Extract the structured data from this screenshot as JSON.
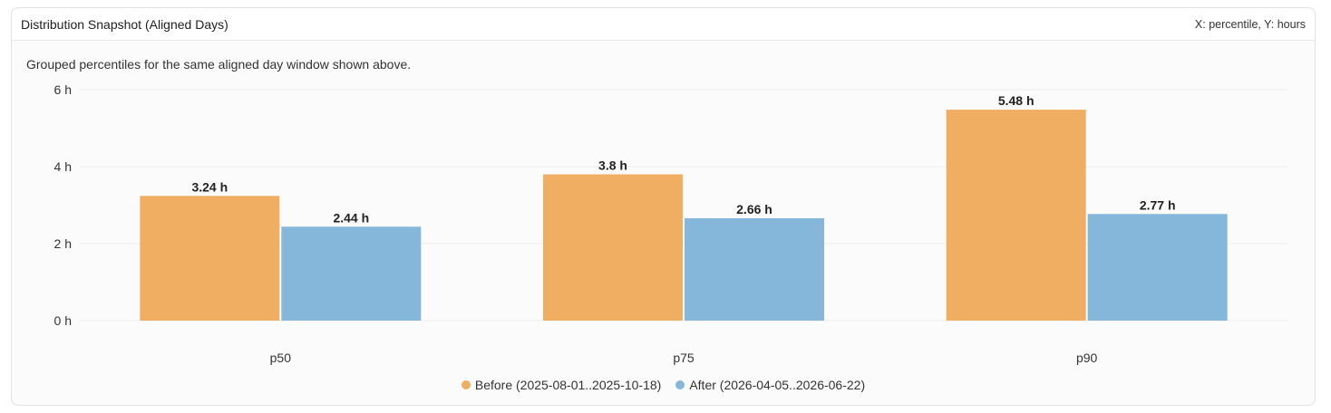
{
  "panel": {
    "title": "Distribution Snapshot (Aligned Days)",
    "axes_note": "X: percentile, Y: hours",
    "description": "Grouped percentiles for the same aligned day window shown above."
  },
  "chart_data": {
    "type": "bar",
    "categories": [
      "p50",
      "p75",
      "p90"
    ],
    "series": [
      {
        "name": "Before (2025-08-01..2025-10-18)",
        "values": [
          3.24,
          3.8,
          5.48
        ],
        "color": "#efae62"
      },
      {
        "name": "After (2026-04-05..2026-06-22)",
        "values": [
          2.44,
          2.66,
          2.77
        ],
        "color": "#85b7db"
      }
    ],
    "value_suffix": " h",
    "ylim": [
      0,
      6
    ],
    "yticks": [
      0,
      2,
      4,
      6
    ],
    "grid": true,
    "legend_position": "bottom-center"
  }
}
